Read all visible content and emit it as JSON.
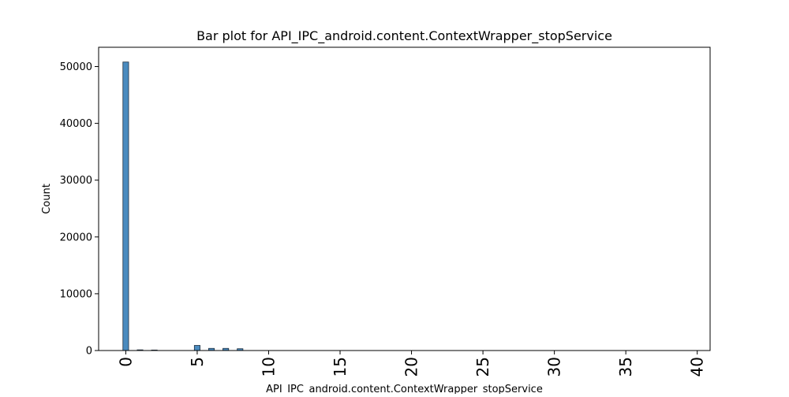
{
  "chart_data": {
    "type": "bar",
    "title": "Bar plot for API_IPC_android.content.ContextWrapper_stopService",
    "xlabel": "API_IPC_android.content.ContextWrapper_stopService",
    "ylabel": "Count",
    "xlim": [
      -1.9,
      40.9
    ],
    "ylim": [
      0,
      53400
    ],
    "xticks": [
      0,
      5,
      10,
      15,
      20,
      25,
      30,
      35,
      40
    ],
    "yticks": [
      0,
      10000,
      20000,
      30000,
      40000,
      50000
    ],
    "bar_width": 0.4,
    "x": [
      0,
      1,
      2,
      5,
      6,
      7,
      8
    ],
    "values": [
      50800,
      120,
      90,
      900,
      380,
      380,
      320
    ],
    "grid": false,
    "legend": "none",
    "colors": {
      "bar_fill": "#4a8bbf",
      "bar_edge": "#1f2f3f",
      "axis": "#000000"
    }
  }
}
